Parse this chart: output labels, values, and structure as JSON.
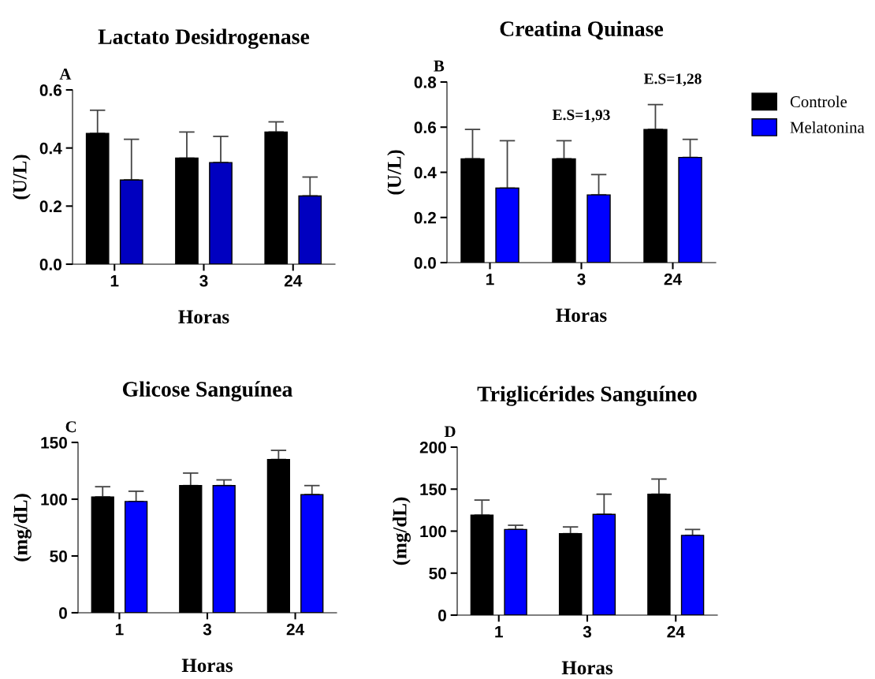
{
  "chart_data": [
    {
      "type": "bar",
      "title": "Lactato Desidrogenase",
      "xlabel": "Horas",
      "ylabel": "(U/L)",
      "categories": [
        "1",
        "3",
        "24"
      ],
      "ylim": [
        0,
        0.6
      ],
      "yticks": [
        {
          "value": 0,
          "label": "0.0"
        },
        0.2,
        0.4,
        0.6
      ],
      "grid": false,
      "legend": false,
      "annotations": [
        "A"
      ],
      "series": [
        {
          "color": "#000000",
          "values": [
            0.45,
            0.365,
            0.455
          ],
          "errors": [
            0.08,
            0.09,
            0.035
          ]
        },
        {
          "color": "#0000c0",
          "values": [
            0.29,
            0.35,
            0.235
          ],
          "errors": [
            0.14,
            0.09,
            0.065
          ]
        }
      ]
    },
    {
      "type": "bar",
      "title": "Creatina Quinase",
      "xlabel": "Horas",
      "ylabel": "(U/L)",
      "categories": [
        "1",
        "3",
        "24"
      ],
      "ylim": [
        0,
        0.8
      ],
      "yticks": [
        {
          "value": 0,
          "label": "0.0"
        },
        0.2,
        0.4,
        0.6,
        0.8
      ],
      "grid": false,
      "legend": "right",
      "annotations": [
        "B",
        "E.S=1,93",
        "E.S=1,28"
      ],
      "series": [
        {
          "name": "Controle",
          "color": "#000000",
          "values": [
            0.46,
            0.46,
            0.59
          ],
          "errors": [
            0.13,
            0.08,
            0.11
          ]
        },
        {
          "name": "Melatonina",
          "color": "#0000ff",
          "values": [
            0.33,
            0.3,
            0.466
          ],
          "errors": [
            0.21,
            0.09,
            0.08
          ]
        }
      ]
    },
    {
      "type": "bar",
      "title": "Glicose Sanguínea",
      "xlabel": "Horas",
      "ylabel": "(mg/dL)",
      "categories": [
        "1",
        "3",
        "24"
      ],
      "ylim": [
        0,
        150
      ],
      "yticks": [
        0,
        50,
        100,
        150
      ],
      "grid": false,
      "legend": false,
      "annotations": [
        "C"
      ],
      "series": [
        {
          "color": "#000000",
          "values": [
            102,
            112,
            135
          ],
          "errors": [
            9,
            11,
            8
          ]
        },
        {
          "color": "#0000ff",
          "values": [
            98,
            112,
            104
          ],
          "errors": [
            9,
            5,
            8
          ]
        }
      ]
    },
    {
      "type": "bar",
      "title": "Triglicérides Sanguíneo",
      "xlabel": "Horas",
      "ylabel": "(mg/dL)",
      "categories": [
        "1",
        "3",
        "24"
      ],
      "ylim": [
        0,
        200
      ],
      "yticks": [
        0,
        50,
        100,
        150,
        200
      ],
      "grid": false,
      "legend": false,
      "annotations": [
        "D"
      ],
      "series": [
        {
          "color": "#000000",
          "values": [
            119,
            97,
            144
          ],
          "errors": [
            18,
            8,
            18
          ]
        },
        {
          "color": "#0000ff",
          "values": [
            102,
            120,
            95
          ],
          "errors": [
            5,
            24,
            7
          ]
        }
      ]
    }
  ]
}
